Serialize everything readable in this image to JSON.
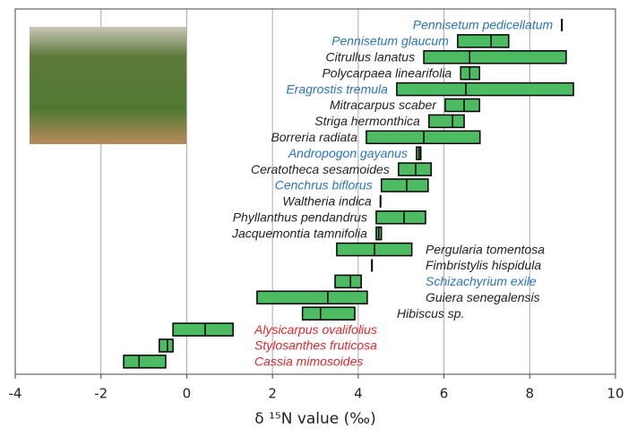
{
  "chart_data": {
    "type": "range",
    "x_label": "δ ¹⁵N value (‰)",
    "categories": [
      "Pennisetum pedicellatum",
      "Pennisetum glaucum",
      "Citrullus lanatus",
      "Polycarpaea linearifolia",
      "Eragrostis tremula",
      "Mitracarpus scaber",
      "Striga hermonthica",
      "Borreria radiata",
      "Andropogon gayanus",
      "Ceratotheca sesamoides",
      "Cenchrus biflorus",
      "Waltheria indica",
      "Phyllanthus pendandrus",
      "Jacquemontia tamnifolia",
      "Pergularia tomentosa",
      "Fimbristylis hispidula",
      "Schizachyrium exile",
      "Guiera senegalensis",
      "Hibiscus sp.",
      "Alysicarpus ovalifolius",
      "Stylosanthes fruticosa",
      "Cassia mimosoides"
    ],
    "label_colors": [
      "#2a74c0",
      "#2a74c0",
      "#222222",
      "#222222",
      "#2a74c0",
      "#222222",
      "#222222",
      "#222222",
      "#2a74c0",
      "#222222",
      "#2a74c0",
      "#222222",
      "#222222",
      "#222222",
      "#222222",
      "#222222",
      "#2a74c0",
      "#222222",
      "#222222",
      "#e8262d",
      "#e8262d",
      "#e8262d"
    ],
    "min": [
      8.75,
      6.32,
      5.53,
      6.39,
      4.9,
      6.03,
      5.65,
      4.19,
      5.36,
      4.94,
      4.54,
      4.52,
      4.42,
      4.42,
      3.5,
      4.32,
      3.46,
      1.64,
      2.7,
      -0.32,
      -0.64,
      -1.47
    ],
    "median": [
      8.75,
      7.1,
      6.6,
      6.6,
      6.51,
      6.47,
      6.2,
      5.53,
      5.42,
      5.34,
      5.13,
      4.52,
      5.07,
      4.48,
      4.38,
      4.32,
      3.82,
      3.29,
      3.12,
      0.43,
      -0.45,
      -1.11
    ],
    "max": [
      8.75,
      7.51,
      8.85,
      6.83,
      9.02,
      6.83,
      6.47,
      6.84,
      5.46,
      5.7,
      5.63,
      4.52,
      5.57,
      4.54,
      5.25,
      4.32,
      4.07,
      4.21,
      3.92,
      1.08,
      -0.32,
      -0.49
    ],
    "color": "#4cbb62",
    "xlim": [
      -4,
      10
    ],
    "xticks": [
      -4,
      -2,
      0,
      2,
      4,
      6,
      8,
      10
    ],
    "grid": true
  }
}
